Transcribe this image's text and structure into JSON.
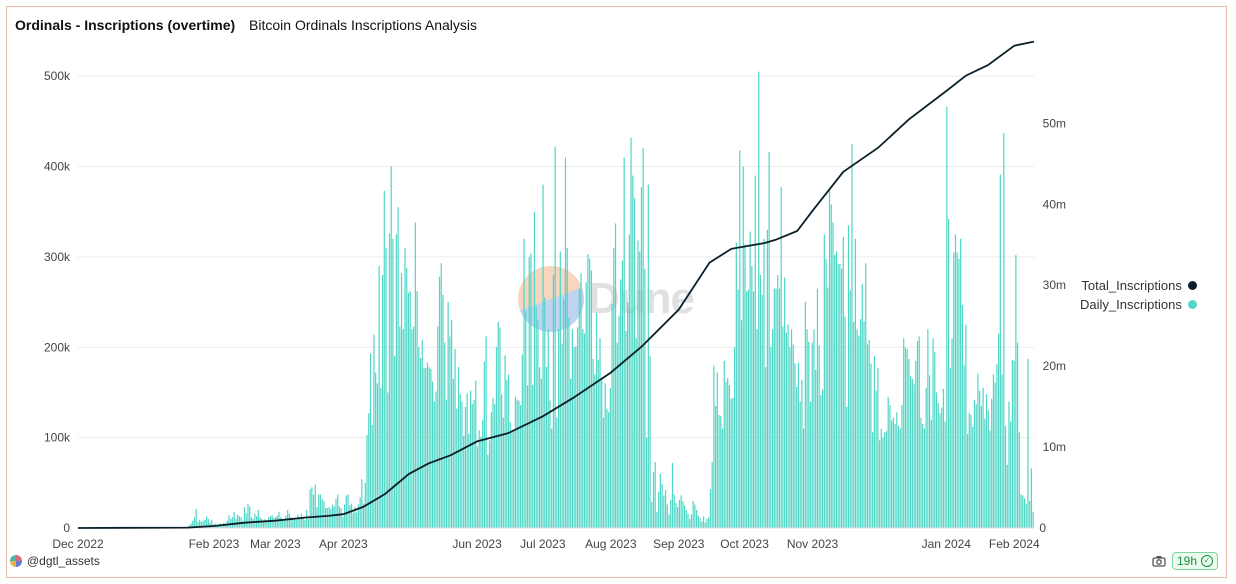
{
  "header": {
    "title": "Ordinals - Inscriptions (overtime)",
    "subtitle": "Bitcoin Ordinals Inscriptions Analysis"
  },
  "watermark": {
    "text": "Dune"
  },
  "legend": {
    "items": [
      {
        "label": "Total_Inscriptions",
        "color": "#0b1f2a"
      },
      {
        "label": "Daily_Inscriptions",
        "color": "#4fd6c6"
      }
    ]
  },
  "footer": {
    "author": "@dgtl_assets",
    "refresh_badge": "19h"
  },
  "chart_data": {
    "type": "bar",
    "x_tick_labels": [
      "Dec 2022",
      "Feb 2023",
      "Mar 2023",
      "Apr 2023",
      "Jun 2023",
      "Jul 2023",
      "Aug 2023",
      "Sep 2023",
      "Oct 2023",
      "Nov 2023",
      "Jan 2024",
      "Feb 2024"
    ],
    "y_left": {
      "ticks": [
        0,
        100000,
        200000,
        300000,
        400000,
        500000
      ],
      "tick_labels": [
        "0",
        "100k",
        "200k",
        "300k",
        "400k",
        "500k"
      ],
      "range": [
        0,
        540000
      ]
    },
    "y_right": {
      "ticks": [
        0,
        10000000,
        20000000,
        30000000,
        40000000,
        50000000
      ],
      "tick_labels": [
        "0",
        "10m",
        "20m",
        "30m",
        "40m",
        "50m"
      ],
      "range": [
        0,
        60300000
      ]
    },
    "grid": true,
    "legend_position": "right",
    "series": [
      {
        "name": "Daily_Inscriptions",
        "type": "bar",
        "axis": "left",
        "color": "#4fd6c6",
        "values": [
          0,
          0,
          0,
          0,
          0,
          0,
          0,
          0,
          0,
          0,
          0,
          0,
          0,
          0,
          0,
          0,
          0,
          0,
          0,
          0,
          0,
          0,
          0,
          0,
          0,
          0,
          0,
          0,
          0,
          0,
          0,
          0,
          0,
          0,
          0,
          0,
          0,
          0,
          0,
          0,
          0,
          0,
          0,
          0,
          0,
          0,
          0,
          0,
          0,
          0,
          0,
          0,
          0,
          0,
          0,
          0,
          0,
          0,
          0,
          0,
          0,
          0,
          0,
          0,
          3000,
          5000,
          8000,
          12000,
          21000,
          7000,
          9000,
          7000,
          8000,
          9000,
          13000,
          10000,
          6000,
          9000,
          4000,
          5000,
          3000,
          4000,
          5000,
          3000,
          6000,
          3000,
          8000,
          14000,
          10000,
          12000,
          18000,
          10000,
          15000,
          13000,
          12000,
          8000,
          23000,
          16000,
          27000,
          24000,
          12000,
          10000,
          16000,
          13000,
          20000,
          12000,
          10000,
          8000,
          10000,
          6000,
          12000,
          13000,
          14000,
          11000,
          12000,
          14000,
          18000,
          12000,
          10000,
          8000,
          14000,
          20000,
          16000,
          12000,
          10000,
          10000,
          9000,
          15000,
          12000,
          16000,
          12000,
          9000,
          20000,
          10000,
          43000,
          45000,
          37000,
          48000,
          23000,
          37000,
          37000,
          32000,
          30000,
          22000,
          22000,
          23000,
          21000,
          26000,
          24000,
          32000,
          37000,
          24000,
          22000,
          12000,
          26000,
          36000,
          37000,
          25000,
          27000,
          17000,
          23000,
          17000,
          26000,
          34000,
          54000,
          27000,
          50000,
          103000,
          127000,
          193000,
          114000,
          214000,
          172000,
          160000,
          290000,
          155000,
          280000,
          373000,
          310000,
          150000,
          326000,
          400000,
          320000,
          190000,
          325000,
          355000,
          223000,
          282000,
          220000,
          310000,
          288000,
          260000,
          262000,
          220000,
          223000,
          338000,
          262000,
          200000,
          188000,
          208000,
          177000,
          177000,
          183000,
          178000,
          176000,
          162000,
          140000,
          151000,
          223000,
          278000,
          293000,
          258000,
          205000,
          142000,
          250000,
          212000,
          230000,
          165000,
          198000,
          132000,
          178000,
          148000,
          140000,
          102000,
          134000,
          149000,
          104000,
          152000,
          137000,
          142000,
          163000,
          90000,
          108000,
          101000,
          120000,
          184000,
          212000,
          81000,
          97000,
          128000,
          144000,
          137000,
          200000,
          228000,
          222000,
          148000,
          122000,
          191000,
          164000,
          170000,
          117000,
          107000,
          108000,
          145000,
          142000,
          141000,
          136000,
          192000,
          320000,
          240000,
          158000,
          300000,
          304000,
          158000,
          350000,
          245000,
          230000,
          178000,
          165000,
          380000,
          255000,
          178000,
          220000,
          141000,
          110000,
          280000,
          422000,
          122000,
          220000,
          306000,
          204000,
          253000,
          410000,
          310000,
          233000,
          165000,
          220000,
          200000,
          201000,
          222000,
          265000,
          282000,
          220000,
          215000,
          272000,
          303000,
          298000,
          285000,
          187000,
          170000,
          238000,
          186000,
          210000,
          166000,
          122000,
          160000,
          132000,
          128000,
          155000,
          248000,
          310000,
          337000,
          205000,
          235000,
          275000,
          296000,
          410000,
          218000,
          250000,
          325000,
          432000,
          390000,
          365000,
          210000,
          318000,
          306000,
          377000,
          420000,
          287000,
          100000,
          380000,
          190000,
          29000,
          62000,
          73000,
          18000,
          40000,
          60000,
          49000,
          36000,
          42000,
          26000,
          15000,
          31000,
          72000,
          37000,
          28000,
          23000,
          31000,
          36000,
          30000,
          25000,
          20000,
          16000,
          10000,
          15000,
          30000,
          26000,
          20000,
          14000,
          11000,
          7000,
          13000,
          6000,
          10000,
          12000,
          43000,
          73000,
          180000,
          135000,
          172000,
          125000,
          124000,
          110000,
          185000,
          162000,
          166000,
          158000,
          143000,
          144000,
          200000,
          316000,
          264000,
          418000,
          230000,
          400000,
          314000,
          262000,
          264000,
          328000,
          290000,
          262000,
          390000,
          220000,
          505000,
          280000,
          258000,
          320000,
          178000,
          330000,
          416000,
          200000,
          220000,
          265000,
          265000,
          280000,
          265000,
          377000,
          223000,
          277000,
          216000,
          225000,
          200000,
          220000,
          203000,
          182000,
          156000,
          183000,
          140000,
          164000,
          110000,
          250000,
          220000,
          206000,
          140000,
          205000,
          220000,
          175000,
          265000,
          202000,
          147000,
          153000,
          325000,
          298000,
          266000,
          375000,
          358000,
          338000,
          302000,
          306000,
          292000,
          292000,
          287000,
          322000,
          234000,
          134000,
          335000,
          263000,
          425000,
          228000,
          320000,
          220000,
          213000,
          231000,
          270000,
          229000,
          293000,
          203000,
          208000,
          182000,
          106000,
          190000,
          152000,
          177000,
          97000,
          110000,
          100000,
          106000,
          107000,
          145000,
          136000,
          119000,
          122000,
          115000,
          128000,
          113000,
          110000,
          136000,
          210000,
          200000,
          198000,
          187000,
          168000,
          165000,
          159000,
          185000,
          207000,
          212000,
          122000,
          115000,
          110000,
          155000,
          220000,
          169000,
          120000,
          210000,
          195000,
          150000,
          138000,
          127000,
          133000,
          154000,
          118000,
          466000,
          342000,
          177000,
          210000,
          305000,
          325000,
          305000,
          298000,
          320000,
          247000,
          180000,
          225000,
          104000,
          127000,
          125000,
          112000,
          142000,
          137000,
          171000,
          152000,
          135000,
          155000,
          121000,
          148000,
          130000,
          108000,
          143000,
          170000,
          161000,
          181000,
          215000,
          391000,
          170000,
          437000,
          113000,
          70000,
          140000,
          118000,
          186000,
          185000,
          302000,
          205000,
          106000,
          37000,
          36000,
          33000,
          27000,
          187000,
          30000,
          66000,
          18000
        ],
        "n": 502
      },
      {
        "name": "Total_Inscriptions",
        "type": "line",
        "axis": "right",
        "color": "#0b1f2a",
        "points": [
          [
            "2022-12-01",
            0
          ],
          [
            "2023-01-20",
            50000
          ],
          [
            "2023-02-01",
            250000
          ],
          [
            "2023-02-15",
            650000
          ],
          [
            "2023-03-01",
            900000
          ],
          [
            "2023-03-15",
            1300000
          ],
          [
            "2023-03-25",
            1500000
          ],
          [
            "2023-04-01",
            1700000
          ],
          [
            "2023-04-10",
            2600000
          ],
          [
            "2023-04-20",
            4200000
          ],
          [
            "2023-05-01",
            6700000
          ],
          [
            "2023-05-10",
            8000000
          ],
          [
            "2023-05-20",
            9000000
          ],
          [
            "2023-06-01",
            10700000
          ],
          [
            "2023-06-15",
            11700000
          ],
          [
            "2023-07-01",
            13800000
          ],
          [
            "2023-07-15",
            16100000
          ],
          [
            "2023-08-01",
            19200000
          ],
          [
            "2023-08-15",
            22400000
          ],
          [
            "2023-09-01",
            27000000
          ],
          [
            "2023-09-15",
            32800000
          ],
          [
            "2023-09-25",
            34500000
          ],
          [
            "2023-10-10",
            35200000
          ],
          [
            "2023-10-15",
            35600000
          ],
          [
            "2023-10-25",
            36700000
          ],
          [
            "2023-11-01",
            39200000
          ],
          [
            "2023-11-15",
            44000000
          ],
          [
            "2023-12-01",
            47000000
          ],
          [
            "2023-12-15",
            50500000
          ],
          [
            "2024-01-01",
            54000000
          ],
          [
            "2024-01-10",
            55900000
          ],
          [
            "2024-01-20",
            57200000
          ],
          [
            "2024-02-01",
            59600000
          ],
          [
            "2024-02-10",
            60100000
          ]
        ]
      }
    ]
  }
}
